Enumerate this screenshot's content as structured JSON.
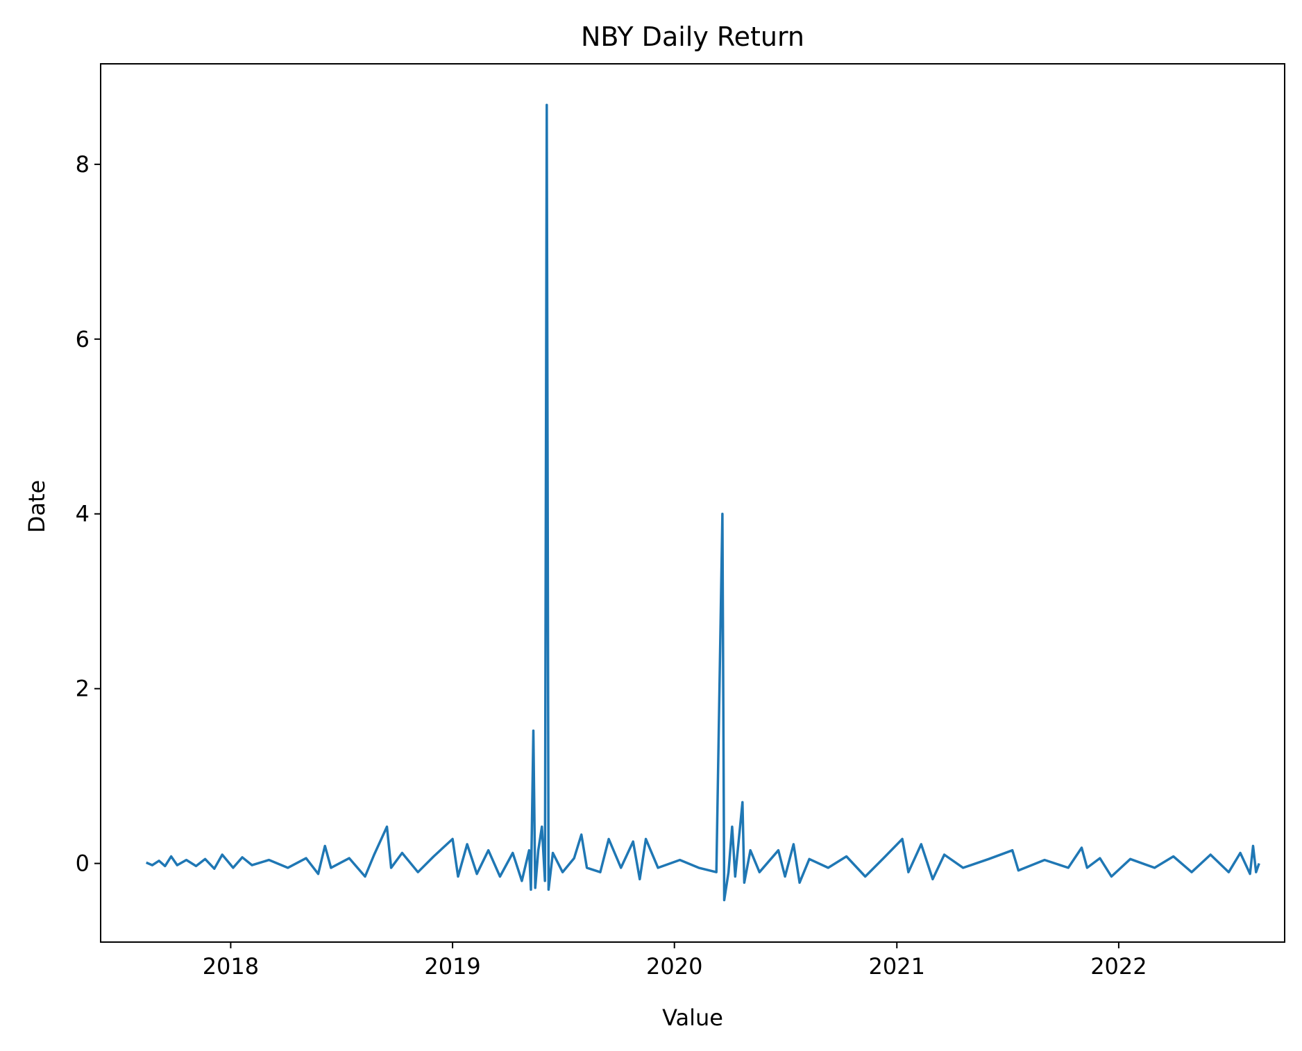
{
  "chart_data": {
    "type": "line",
    "title": "NBY Daily Return",
    "xlabel": "Value",
    "ylabel": "Date",
    "x_tick_labels": [
      "2018",
      "2019",
      "2020",
      "2021",
      "2022"
    ],
    "y_tick_labels": [
      "0",
      "2",
      "4",
      "6",
      "8"
    ],
    "x_range": [
      "2017-06-01",
      "2022-10-01"
    ],
    "ylim": [
      -0.9,
      9.15
    ],
    "grid": false,
    "legend": "none",
    "series": [
      {
        "color": "#1f77b4",
        "points": [
          [
            "2017-08-15",
            0.01
          ],
          [
            "2017-08-25",
            -0.02
          ],
          [
            "2017-09-05",
            0.03
          ],
          [
            "2017-09-15",
            -0.03
          ],
          [
            "2017-09-25",
            0.08
          ],
          [
            "2017-10-05",
            -0.02
          ],
          [
            "2017-10-20",
            0.04
          ],
          [
            "2017-11-05",
            -0.03
          ],
          [
            "2017-11-20",
            0.05
          ],
          [
            "2017-12-05",
            -0.06
          ],
          [
            "2017-12-18",
            0.1
          ],
          [
            "2018-01-05",
            -0.05
          ],
          [
            "2018-01-20",
            0.07
          ],
          [
            "2018-02-05",
            -0.02
          ],
          [
            "2018-03-05",
            0.04
          ],
          [
            "2018-04-05",
            -0.05
          ],
          [
            "2018-05-05",
            0.06
          ],
          [
            "2018-05-25",
            -0.12
          ],
          [
            "2018-06-05",
            0.2
          ],
          [
            "2018-06-15",
            -0.05
          ],
          [
            "2018-07-15",
            0.06
          ],
          [
            "2018-08-10",
            -0.15
          ],
          [
            "2018-08-25",
            0.1
          ],
          [
            "2018-09-15",
            0.42
          ],
          [
            "2018-09-22",
            -0.05
          ],
          [
            "2018-10-10",
            0.12
          ],
          [
            "2018-11-05",
            -0.1
          ],
          [
            "2018-12-01",
            0.08
          ],
          [
            "2019-01-01",
            0.28
          ],
          [
            "2019-01-10",
            -0.15
          ],
          [
            "2019-01-25",
            0.22
          ],
          [
            "2019-02-10",
            -0.12
          ],
          [
            "2019-03-01",
            0.15
          ],
          [
            "2019-03-20",
            -0.15
          ],
          [
            "2019-04-10",
            0.12
          ],
          [
            "2019-04-25",
            -0.2
          ],
          [
            "2019-05-07",
            0.15
          ],
          [
            "2019-05-10",
            -0.3
          ],
          [
            "2019-05-14",
            1.52
          ],
          [
            "2019-05-17",
            -0.28
          ],
          [
            "2019-05-22",
            0.15
          ],
          [
            "2019-05-28",
            0.42
          ],
          [
            "2019-06-02",
            -0.2
          ],
          [
            "2019-06-05",
            8.68
          ],
          [
            "2019-06-08",
            -0.3
          ],
          [
            "2019-06-15",
            0.12
          ],
          [
            "2019-07-01",
            -0.1
          ],
          [
            "2019-07-20",
            0.06
          ],
          [
            "2019-08-01",
            0.33
          ],
          [
            "2019-08-10",
            -0.05
          ],
          [
            "2019-09-01",
            -0.1
          ],
          [
            "2019-09-15",
            0.28
          ],
          [
            "2019-10-05",
            -0.05
          ],
          [
            "2019-10-25",
            0.25
          ],
          [
            "2019-11-05",
            -0.18
          ],
          [
            "2019-11-15",
            0.28
          ],
          [
            "2019-12-05",
            -0.05
          ],
          [
            "2020-01-10",
            0.04
          ],
          [
            "2020-02-10",
            -0.05
          ],
          [
            "2020-03-10",
            -0.1
          ],
          [
            "2020-03-20",
            4.0
          ],
          [
            "2020-03-23",
            -0.42
          ],
          [
            "2020-03-30",
            -0.1
          ],
          [
            "2020-04-05",
            0.42
          ],
          [
            "2020-04-10",
            -0.15
          ],
          [
            "2020-04-22",
            0.7
          ],
          [
            "2020-04-25",
            -0.22
          ],
          [
            "2020-05-05",
            0.15
          ],
          [
            "2020-05-20",
            -0.1
          ],
          [
            "2020-06-20",
            0.15
          ],
          [
            "2020-07-01",
            -0.15
          ],
          [
            "2020-07-15",
            0.22
          ],
          [
            "2020-07-25",
            -0.22
          ],
          [
            "2020-08-10",
            0.05
          ],
          [
            "2020-09-10",
            -0.05
          ],
          [
            "2020-10-10",
            0.08
          ],
          [
            "2020-11-10",
            -0.15
          ],
          [
            "2020-12-10",
            0.06
          ],
          [
            "2021-01-10",
            0.28
          ],
          [
            "2021-01-20",
            -0.1
          ],
          [
            "2021-02-10",
            0.22
          ],
          [
            "2021-03-01",
            -0.18
          ],
          [
            "2021-03-20",
            0.1
          ],
          [
            "2021-04-20",
            -0.05
          ],
          [
            "2021-06-01",
            0.05
          ],
          [
            "2021-07-10",
            0.15
          ],
          [
            "2021-07-20",
            -0.08
          ],
          [
            "2021-09-01",
            0.04
          ],
          [
            "2021-10-10",
            -0.05
          ],
          [
            "2021-11-01",
            0.18
          ],
          [
            "2021-11-10",
            -0.05
          ],
          [
            "2021-12-01",
            0.06
          ],
          [
            "2021-12-20",
            -0.15
          ],
          [
            "2022-01-20",
            0.05
          ],
          [
            "2022-03-01",
            -0.05
          ],
          [
            "2022-04-01",
            0.08
          ],
          [
            "2022-05-01",
            -0.1
          ],
          [
            "2022-06-01",
            0.1
          ],
          [
            "2022-07-01",
            -0.1
          ],
          [
            "2022-07-20",
            0.12
          ],
          [
            "2022-08-05",
            -0.12
          ],
          [
            "2022-08-10",
            0.2
          ],
          [
            "2022-08-15",
            -0.1
          ],
          [
            "2022-08-20",
            0.0
          ]
        ]
      }
    ]
  }
}
